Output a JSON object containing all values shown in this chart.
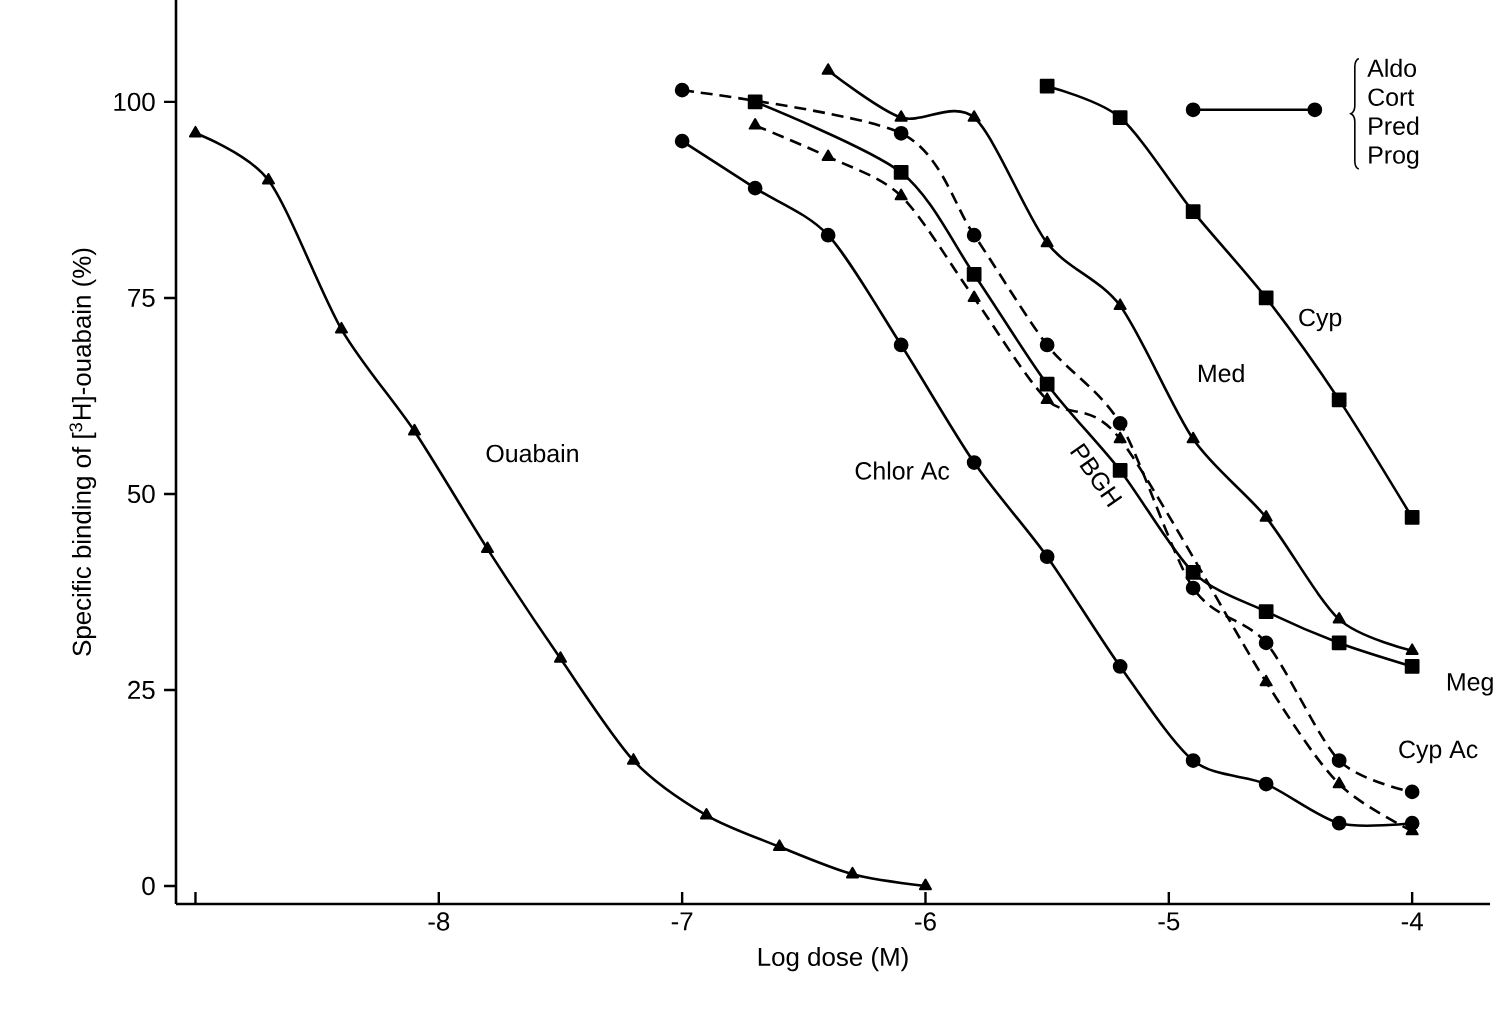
{
  "chart_data": {
    "type": "line",
    "xlabel": "Log dose (M)",
    "ylabel": "Specific binding of [$^{3}$H]-ouabain (%)",
    "xlim": [
      -9.08,
      -3.68
    ],
    "ylim": [
      -2.3,
      113
    ],
    "xticks": [
      {
        "value": -9,
        "label": null
      },
      -8,
      -7,
      -6,
      -5,
      -4
    ],
    "yticks": [
      0,
      25,
      50,
      75,
      100
    ],
    "grid": false,
    "annotations": [
      "Aldo",
      "Cort",
      "Pred",
      "Prog"
    ],
    "series": [
      {
        "name": "Ouabain",
        "color": "#000000",
        "marker": "triangle",
        "line_style": "solid",
        "x": [
          -9,
          -8.7,
          -8.4,
          -8.1,
          -7.8,
          -7.5,
          -7.2,
          -6.9,
          -6.6,
          -6.3,
          -6.0
        ],
        "values": [
          96,
          90,
          71,
          58,
          43,
          29,
          16,
          9,
          5,
          1.5,
          0
        ]
      },
      {
        "name": "Chlor Ac",
        "color": "#000000",
        "marker": "circle",
        "line_style": "solid",
        "x": [
          -7,
          -6.7,
          -6.4,
          -6.1,
          -5.8,
          -5.5,
          -5.2,
          -4.9,
          -4.6,
          -4.3,
          -4.0
        ],
        "values": [
          95,
          89,
          83,
          69,
          54,
          42,
          28,
          16,
          13,
          8,
          8
        ]
      },
      {
        "name": "Meg",
        "color": "#000000",
        "marker": "square",
        "line_style": "solid",
        "x": [
          -6.7,
          -6.1,
          -5.8,
          -5.5,
          -5.2,
          -4.9,
          -4.6,
          -4.3,
          -4.0
        ],
        "values": [
          100,
          91,
          78,
          64,
          53,
          40,
          35,
          31,
          28
        ]
      },
      {
        "name": "PBGH",
        "color": "#000000",
        "marker": "triangle",
        "line_style": "dashed",
        "x": [
          -6.7,
          -6.4,
          -6.1,
          -5.8,
          -5.5,
          -5.2,
          -4.6,
          -4.3,
          -4.0
        ],
        "values": [
          97,
          93,
          88,
          75,
          62,
          57,
          26,
          13,
          7
        ]
      },
      {
        "name": "Cyp Ac",
        "color": "#000000",
        "marker": "circle",
        "line_style": "dashed",
        "x": [
          -7,
          -6.1,
          -5.8,
          -5.5,
          -5.2,
          -4.9,
          -4.6,
          -4.3,
          -4.0
        ],
        "values": [
          101.5,
          96,
          83,
          69,
          59,
          38,
          31,
          16,
          12
        ]
      },
      {
        "name": "Med",
        "color": "#000000",
        "marker": "triangle",
        "line_style": "solid",
        "x": [
          -6.4,
          -6.1,
          -5.8,
          -5.5,
          -5.2,
          -4.9,
          -4.6,
          -4.3,
          -4.0
        ],
        "values": [
          104,
          98,
          98,
          82,
          74,
          57,
          47,
          34,
          30
        ]
      },
      {
        "name": "Cyp",
        "color": "#000000",
        "marker": "square",
        "line_style": "solid",
        "x": [
          -5.5,
          -5.2,
          -4.9,
          -4.6,
          -4.3,
          -4.0
        ],
        "values": [
          102,
          98,
          86,
          75,
          62,
          47
        ]
      },
      {
        "color": "#000000",
        "marker": "circle",
        "line_style": "solid",
        "x": [
          -4.9,
          -4.4
        ],
        "values": [
          99,
          99
        ]
      }
    ]
  }
}
